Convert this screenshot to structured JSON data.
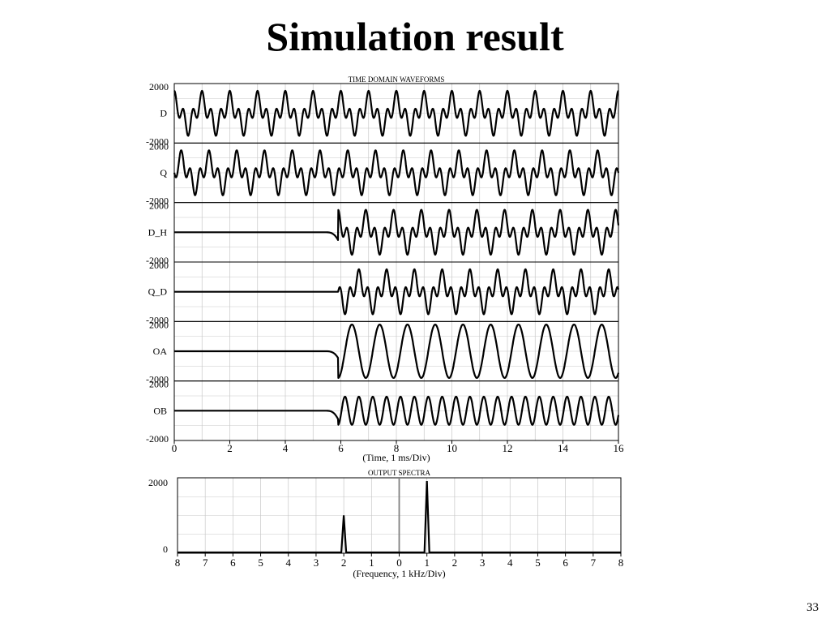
{
  "slide": {
    "title": "Simulation result",
    "page_number": "33"
  },
  "chart_data": [
    {
      "type": "line",
      "title": "TIME DOMAIN WAVEFORMS",
      "xlabel": "(Time, 1 ms/Div)",
      "x_ticks": [
        0,
        2,
        4,
        6,
        8,
        10,
        12,
        14,
        16
      ],
      "xlim": [
        0,
        16
      ],
      "grid": true,
      "colors": {
        "line": "#000000",
        "grid": "#c8c8c8",
        "frame": "#000000"
      },
      "series": [
        {
          "name": "D",
          "ylim": [
            -2000,
            2000
          ],
          "y_ticks": [
            2000,
            -2000
          ],
          "start_ms": 0,
          "pre_level": 0,
          "amplitude": 1600,
          "description_points": {
            "x": [
              0.0,
              0.25,
              0.5,
              0.75,
              1.0
            ],
            "y": [
              1500,
              -1600,
              1500,
              -1600,
              1500
            ]
          },
          "period_ms": 1.0
        },
        {
          "name": "Q",
          "ylim": [
            -2000,
            2000
          ],
          "y_ticks": [
            2000,
            -2000
          ],
          "start_ms": 0,
          "pre_level": 0,
          "amplitude": 1600,
          "description_points": {
            "x": [
              0.0,
              0.5,
              1.0
            ],
            "y": [
              1400,
              -1600,
              1400
            ]
          },
          "period_ms": 1.0
        },
        {
          "name": "D_H",
          "ylim": [
            -2000,
            2000
          ],
          "y_ticks": [
            2000,
            -2000
          ],
          "start_ms": 5.9,
          "pre_level": 0,
          "amplitude": 1600,
          "description_points": {
            "x": [
              0.0,
              5.5,
              5.9,
              6.2,
              6.5,
              7.0
            ],
            "y": [
              0,
              -100,
              -700,
              1500,
              -600,
              1500
            ]
          },
          "period_ms": 1.0
        },
        {
          "name": "Q_D",
          "ylim": [
            -2000,
            2000
          ],
          "y_ticks": [
            2000,
            -2000
          ],
          "start_ms": 5.9,
          "pre_level": 0,
          "amplitude": 1600,
          "description_points": {
            "x": [
              0.0,
              5.9,
              6.2,
              6.5,
              7.0
            ],
            "y": [
              0,
              0,
              1400,
              -1600,
              1400
            ]
          },
          "period_ms": 1.0
        },
        {
          "name": "OA",
          "ylim": [
            -2000,
            2000
          ],
          "y_ticks": [
            2000,
            -2000
          ],
          "start_ms": 5.9,
          "pre_level": 0,
          "amplitude": 1900,
          "description_points": {
            "x": [
              0.0,
              5.5,
              5.9,
              6.3,
              6.8
            ],
            "y": [
              0,
              -100,
              -500,
              1900,
              -1900
            ]
          },
          "period_ms": 1.0
        },
        {
          "name": "OB",
          "ylim": [
            -2000,
            2000
          ],
          "y_ticks": [
            2000,
            -2000
          ],
          "start_ms": 5.9,
          "pre_level": 0,
          "amplitude": 1000,
          "description_points": {
            "x": [
              0.0,
              5.5,
              5.9,
              6.3,
              6.5
            ],
            "y": [
              0,
              -100,
              -1300,
              1000,
              -1000
            ]
          },
          "period_ms": 0.5
        }
      ]
    },
    {
      "type": "line",
      "title": "OUTPUT SPECTRA",
      "xlabel": "(Frequency, 1 kHz/Div)",
      "x_tick_labels": [
        "8",
        "7",
        "6",
        "5",
        "4",
        "3",
        "2",
        "1",
        "0",
        "1",
        "2",
        "3",
        "4",
        "5",
        "6",
        "7",
        "8"
      ],
      "x": [
        -8,
        -7,
        -6,
        -5,
        -4,
        -3,
        -2,
        -1,
        0,
        1,
        2,
        3,
        4,
        5,
        6,
        7,
        8
      ],
      "xlim": [
        -8,
        8
      ],
      "ylim": [
        0,
        2000
      ],
      "y_ticks": [
        2000,
        0
      ],
      "grid": true,
      "peaks": [
        {
          "x": -2,
          "y": 1050
        },
        {
          "x": 1,
          "y": 2000
        }
      ],
      "colors": {
        "line": "#000000",
        "grid": "#c8c8c8",
        "frame": "#000000",
        "center_line": "#808080"
      }
    }
  ]
}
